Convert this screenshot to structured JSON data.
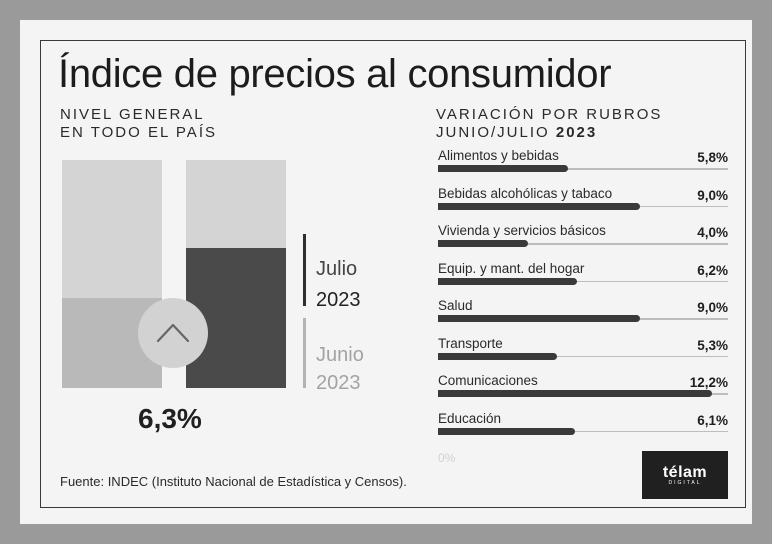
{
  "title": "Índice de precios al consumidor",
  "left_panel": {
    "subtitle_line1": "NIVEL GENERAL",
    "subtitle_line2": "EN TODO EL PAÍS",
    "headline_value": "6,3%",
    "legend": [
      {
        "month": "Julio",
        "year": "2023",
        "color": "#4a4a4a"
      },
      {
        "month": "Junio",
        "year": "2023",
        "color": "#b9b9b9"
      }
    ],
    "arrow_icon": "chevron-up-icon"
  },
  "right_panel": {
    "title_line1": "VARIACIÓN POR RUBROS",
    "title_line2_prefix": "JUNIO/JULIO",
    "title_line2_year": "2023",
    "zero_label": "0%"
  },
  "chart_data": [
    {
      "type": "bar",
      "title": "Variación por rubros Junio/Julio 2023",
      "orientation": "horizontal",
      "categories": [
        "Alimentos y bebidas",
        "Bebidas alcohólicas y tabaco",
        "Vivienda y servicios básicos",
        "Equip. y mant. del hogar",
        "Salud",
        "Transporte",
        "Comunicaciones",
        "Educación"
      ],
      "values": [
        5.8,
        9.0,
        4.0,
        6.2,
        9.0,
        5.3,
        12.2,
        6.1
      ],
      "value_labels": [
        "5,8%",
        "9,0%",
        "4,0%",
        "6,2%",
        "9,0%",
        "5,3%",
        "12,2%",
        "6,1%"
      ],
      "xlim": [
        0,
        12.9
      ],
      "bar_color": "#3a3a3a",
      "grid": false
    }
  ],
  "colors": {
    "background": "#9a9a9a",
    "panel": "#f4f4f4",
    "block_light": "#d4d4d4",
    "block_mid": "#b9b9b9",
    "block_dark": "#4a4a4a",
    "logo_bg": "#202020"
  },
  "footer": {
    "source": "Fuente: INDEC (Instituto Nacional de Estadística y Censos).",
    "logo_text": "télam",
    "logo_sub": "DIGITAL"
  }
}
